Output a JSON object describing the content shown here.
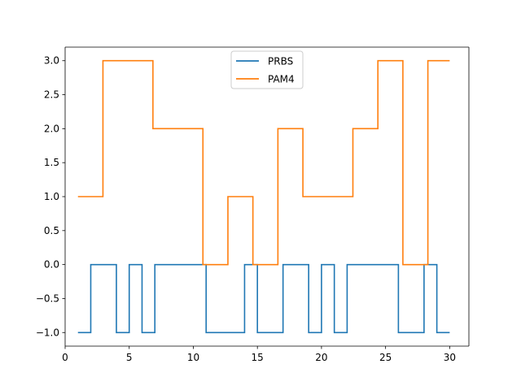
{
  "chart_data": {
    "type": "line",
    "drawstyle": "steps-post",
    "title": "",
    "xlabel": "",
    "ylabel": "",
    "xlim": [
      0,
      31.5
    ],
    "ylim": [
      -1.2,
      3.2
    ],
    "xticks": [
      0,
      5,
      10,
      15,
      20,
      25,
      30
    ],
    "yticks": [
      -1.0,
      -0.5,
      0.0,
      0.5,
      1.0,
      1.5,
      2.0,
      2.5,
      3.0
    ],
    "xtick_labels": [
      "0",
      "5",
      "10",
      "15",
      "20",
      "25",
      "30"
    ],
    "ytick_labels": [
      "−1.0",
      "−0.5",
      "0.0",
      "0.5",
      "1.0",
      "1.5",
      "2.0",
      "2.5",
      "3.0"
    ],
    "legend_position": "upper center",
    "series": [
      {
        "name": "PRBS",
        "color": "#1f77b4",
        "x": [
          1,
          2,
          3,
          4,
          5,
          6,
          7,
          8,
          9,
          10,
          11,
          12,
          13,
          14,
          15,
          16,
          17,
          18,
          19,
          20,
          21,
          22,
          23,
          24,
          25,
          26,
          27,
          28,
          29,
          30
        ],
        "y": [
          -1,
          0,
          0,
          -1,
          0,
          -1,
          0,
          0,
          0,
          0,
          -1,
          -1,
          -1,
          0,
          -1,
          -1,
          0,
          0,
          -1,
          0,
          -1,
          0,
          0,
          0,
          0,
          -1,
          -1,
          0,
          -1,
          -1
        ]
      },
      {
        "name": "PAM4",
        "color": "#ff7f0e",
        "x": [
          1,
          2.95,
          6.85,
          10.75,
          12.7,
          14.65,
          16.6,
          18.55,
          22.45,
          24.4,
          26.35,
          28.3,
          30
        ],
        "y": [
          1,
          3,
          2,
          0,
          1,
          0,
          2,
          1,
          2,
          3,
          0,
          3,
          3
        ]
      }
    ]
  }
}
